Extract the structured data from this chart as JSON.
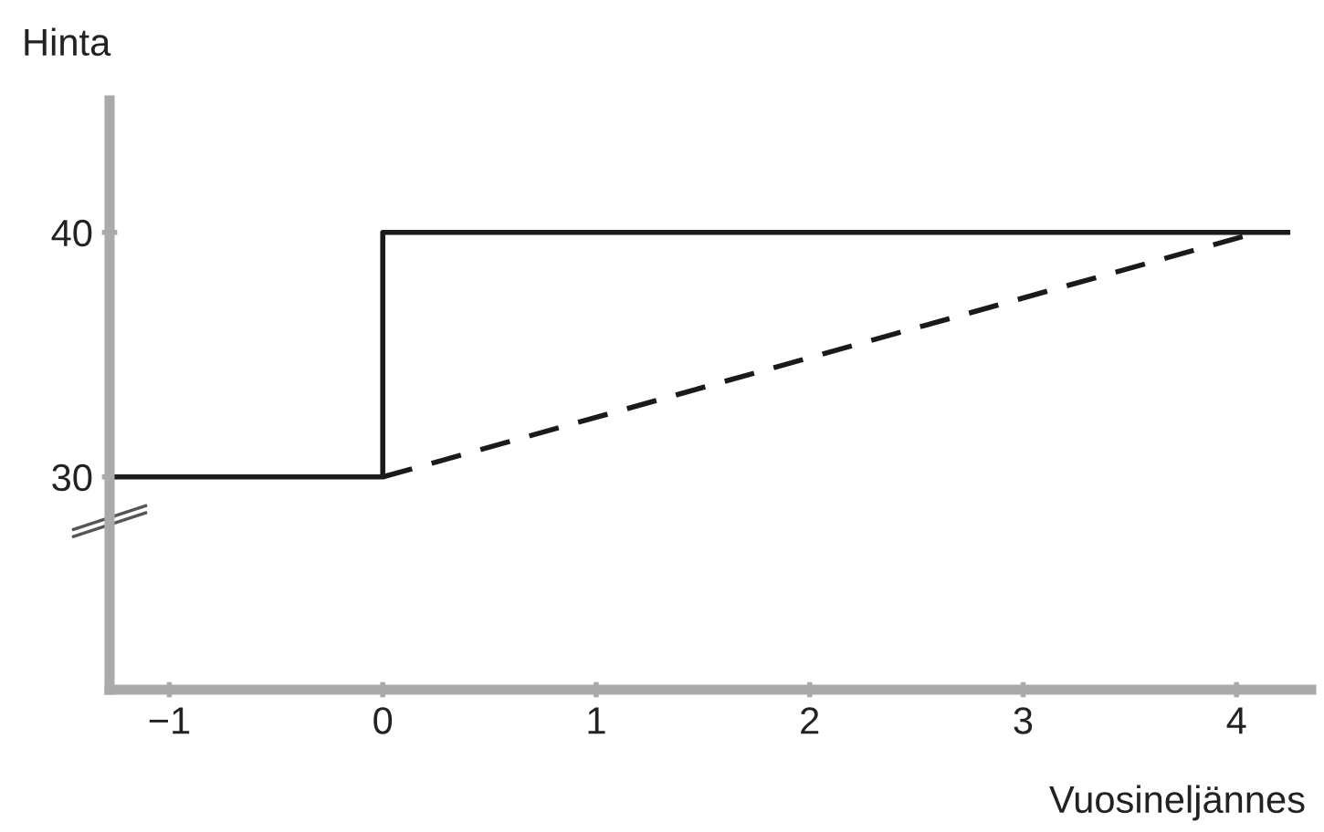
{
  "chart_data": {
    "type": "line",
    "ylabel": "Hinta",
    "xlabel": "Vuosineljännes",
    "series": [
      {
        "color": "#1a1a1a",
        "x": [
          -1.28,
          0,
          0,
          4.24
        ],
        "values": [
          30,
          30,
          40,
          40
        ],
        "line_style": "solid"
      },
      {
        "color": "#1a1a1a",
        "x": [
          0,
          4.1
        ],
        "values": [
          30,
          40
        ],
        "line_style": "dashed"
      }
    ],
    "xlim": [
      -1.28,
      4.35
    ],
    "ylim": [
      21.3,
      45.4
    ],
    "xticks": [
      {
        "value": -1,
        "label": "−1"
      },
      0,
      1,
      2,
      3,
      4
    ],
    "yticks": [
      30,
      40
    ],
    "grid": false,
    "legend": false,
    "marker": "none"
  }
}
